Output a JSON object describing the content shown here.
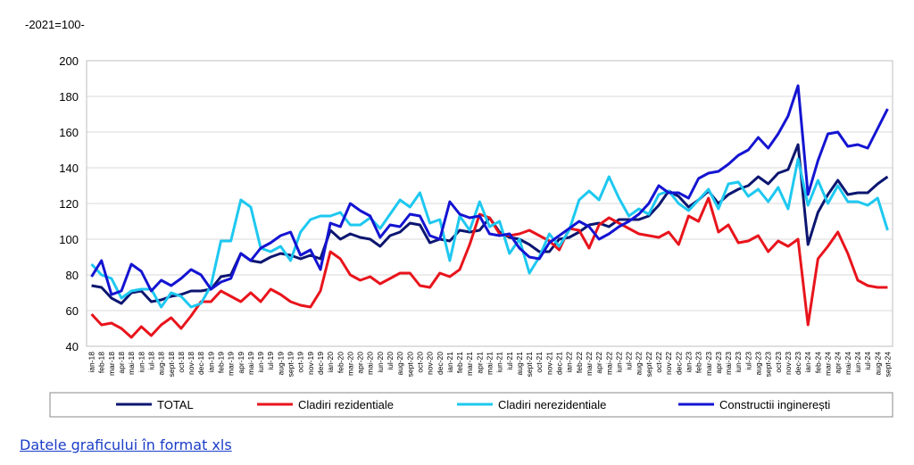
{
  "chart_data": {
    "type": "line",
    "subtitle": "-2021=100-",
    "categories": [
      "ian-18",
      "feb-18",
      "mar-18",
      "apr-18",
      "mai-18",
      "iun-18",
      "iul-18",
      "aug-18",
      "sept-18",
      "oct-18",
      "nov-18",
      "dec-18",
      "ian-19",
      "feb-19",
      "mar-19",
      "apr-19",
      "mai-19",
      "iun-19",
      "iul-19",
      "aug-19",
      "sept-19",
      "oct-19",
      "nov-19",
      "dec-19",
      "ian-20",
      "feb-20",
      "mar-20",
      "apr-20",
      "mai-20",
      "iun-20",
      "iul-20",
      "aug-20",
      "sept-20",
      "oct-20",
      "nov-20",
      "dec-20",
      "ian-21",
      "feb-21",
      "mar-21",
      "apr-21",
      "mai-21",
      "iun-21",
      "iul-21",
      "aug-21",
      "sept-21",
      "oct-21",
      "nov-21",
      "dec-21",
      "ian-22",
      "feb-22",
      "mar-22",
      "apr-22",
      "mai-22",
      "iun-22",
      "iul-22",
      "aug-22",
      "sept-22",
      "oct-22",
      "nov-22",
      "dec-22",
      "ian-23",
      "feb-23",
      "mar-23",
      "apr-23",
      "mai-23",
      "iun-23",
      "iul-23",
      "aug-23",
      "sept-23",
      "oct-23",
      "nov-23",
      "dec-23",
      "ian-24",
      "feb-24",
      "mar-24",
      "apr-24",
      "mai-24",
      "iun-24",
      "iul-24",
      "aug-24",
      "sept-24"
    ],
    "series": [
      {
        "name": "TOTAL",
        "color": "#0c1670",
        "values": [
          74,
          73,
          67,
          64,
          70,
          71,
          65,
          66,
          68,
          69,
          71,
          71,
          72,
          79,
          80,
          92,
          88,
          87,
          90,
          92,
          91,
          89,
          91,
          89,
          105,
          100,
          103,
          101,
          100,
          96,
          102,
          104,
          109,
          108,
          98,
          100,
          99,
          105,
          104,
          105,
          112,
          104,
          101,
          100,
          97,
          93,
          93,
          100,
          101,
          104,
          108,
          109,
          107,
          111,
          111,
          111,
          113,
          119,
          127,
          124,
          118,
          122,
          127,
          120,
          125,
          128,
          130,
          135,
          131,
          137,
          139,
          153,
          97,
          115,
          125,
          133,
          125,
          126,
          126,
          131,
          135
        ]
      },
      {
        "name": "Cladiri rezidentiale",
        "color": "#e8141c",
        "values": [
          58,
          52,
          53,
          50,
          45,
          51,
          46,
          52,
          56,
          50,
          57,
          65,
          65,
          71,
          68,
          65,
          70,
          65,
          72,
          69,
          65,
          63,
          62,
          71,
          93,
          89,
          80,
          77,
          79,
          75,
          78,
          81,
          81,
          74,
          73,
          81,
          79,
          83,
          97,
          114,
          112,
          103,
          102,
          103,
          105,
          102,
          99,
          94,
          106,
          105,
          95,
          108,
          112,
          109,
          106,
          103,
          102,
          101,
          104,
          97,
          113,
          110,
          123,
          104,
          108,
          98,
          99,
          102,
          93,
          99,
          96,
          100,
          52,
          89,
          96,
          104,
          92,
          77,
          74,
          73,
          73
        ]
      },
      {
        "name": "Cladiri nerezidentiale",
        "color": "#1ec8f0",
        "values": [
          86,
          80,
          78,
          67,
          71,
          72,
          72,
          62,
          70,
          68,
          62,
          64,
          74,
          99,
          99,
          122,
          118,
          95,
          93,
          96,
          88,
          104,
          111,
          113,
          113,
          115,
          108,
          108,
          112,
          106,
          114,
          122,
          118,
          126,
          109,
          111,
          88,
          113,
          105,
          121,
          107,
          110,
          92,
          100,
          81,
          90,
          103,
          96,
          105,
          122,
          127,
          122,
          135,
          123,
          113,
          117,
          114,
          125,
          127,
          120,
          116,
          122,
          128,
          117,
          131,
          132,
          124,
          128,
          121,
          129,
          117,
          145,
          119,
          133,
          120,
          130,
          121,
          121,
          119,
          123,
          105
        ]
      },
      {
        "name": "Constructii inginerești",
        "color": "#1414d2",
        "values": [
          79,
          88,
          69,
          71,
          86,
          82,
          71,
          77,
          74,
          78,
          83,
          80,
          72,
          76,
          78,
          92,
          88,
          95,
          98,
          102,
          104,
          91,
          94,
          83,
          109,
          107,
          120,
          116,
          113,
          101,
          108,
          107,
          114,
          113,
          102,
          100,
          121,
          114,
          112,
          113,
          103,
          102,
          103,
          95,
          90,
          89,
          98,
          102,
          106,
          110,
          107,
          100,
          103,
          107,
          110,
          114,
          120,
          130,
          126,
          126,
          123,
          134,
          137,
          138,
          142,
          147,
          150,
          157,
          151,
          159,
          169,
          186,
          125,
          144,
          159,
          160,
          152,
          153,
          151,
          162,
          173
        ]
      }
    ],
    "ylim": [
      40,
      200
    ],
    "yticks": [
      40,
      60,
      80,
      100,
      120,
      140,
      160,
      180,
      200
    ],
    "grid": true,
    "legend": "bottom"
  },
  "link": {
    "text": "Datele graficului în format xls"
  }
}
